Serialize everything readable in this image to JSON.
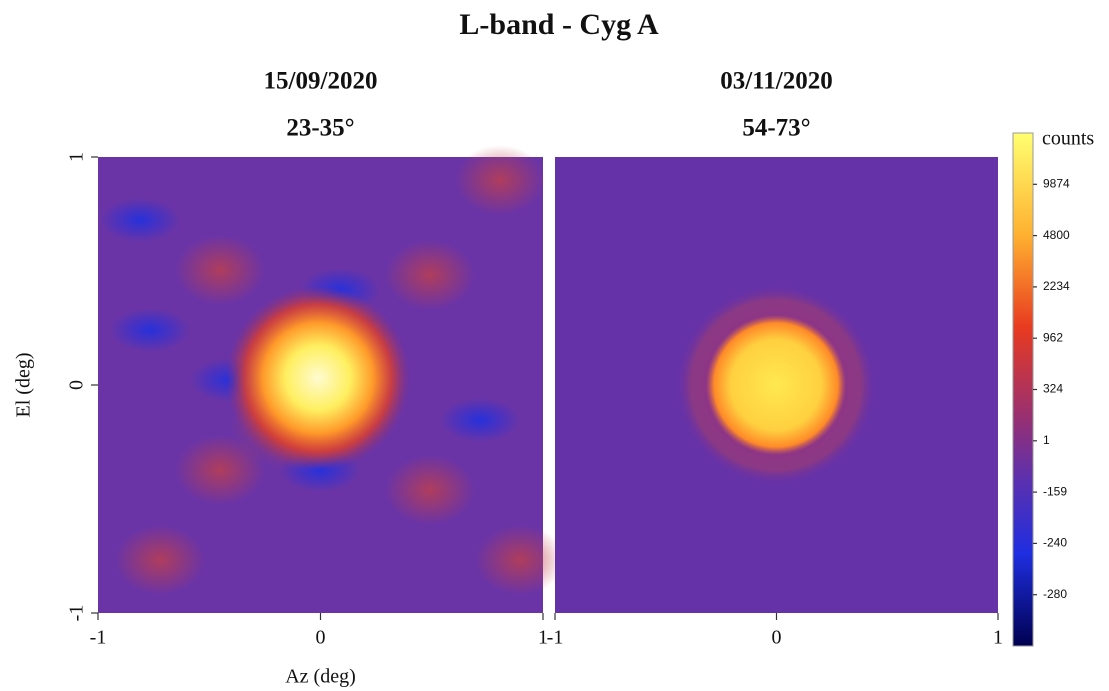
{
  "figure": {
    "title": "L-band - Cyg A",
    "colorbar": {
      "label": "counts",
      "ticks": [
        9874,
        4800,
        2234,
        962,
        324,
        1,
        -159,
        -240,
        -280
      ]
    }
  },
  "chart_data": [
    {
      "type": "heatmap",
      "title": "15/09/2020",
      "subtitle": "23-35°",
      "x_label": "Az (deg)",
      "y_label": "El (deg)",
      "xlim": [
        -1,
        1
      ],
      "xticks": [
        -1,
        0,
        1
      ],
      "ylim": [
        -1,
        1
      ],
      "yticks": [
        -1,
        0,
        1
      ]
    },
    {
      "type": "heatmap",
      "title": "03/11/2020",
      "subtitle": "54-73°",
      "xlim": [
        -1,
        1
      ],
      "xticks": [
        -1,
        0,
        1
      ]
    }
  ]
}
